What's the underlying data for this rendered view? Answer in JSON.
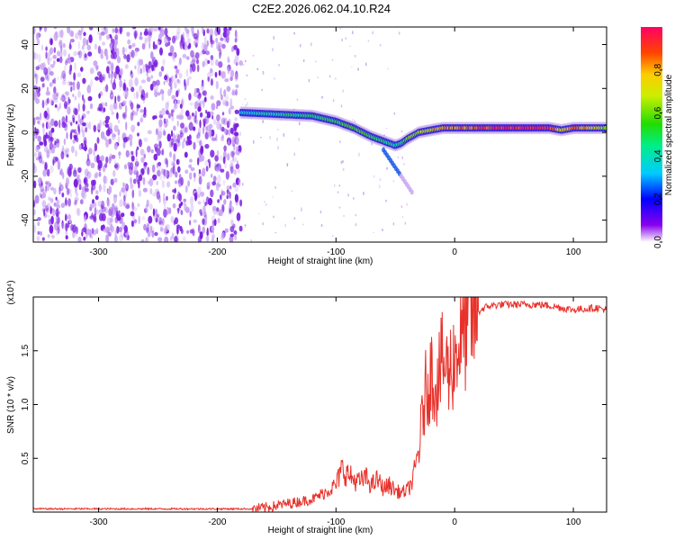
{
  "title": "C2E2.2026.062.04.10.R24",
  "colors": {
    "snr_line": "#e8312a",
    "frame": "#000000",
    "background": "#ffffff"
  },
  "chart_data": [
    {
      "type": "heatmap",
      "name": "spectrogram",
      "xlabel": "Height of straight line (km)",
      "ylabel": "Frequency (Hz)",
      "xlim": [
        -355,
        128
      ],
      "ylim": [
        -50,
        48
      ],
      "xticks": [
        -300,
        -200,
        -100,
        0,
        100
      ],
      "yticks": [
        -40,
        -20,
        0,
        20,
        40
      ],
      "colorbar": {
        "label": "Normalized spectral amplitude",
        "range": [
          0,
          1
        ],
        "ticks": [
          0.0,
          0.2,
          0.4,
          0.6,
          0.8
        ],
        "tick_labels": [
          "0.0",
          "0.2",
          "0.4",
          "0.6",
          "0.8"
        ]
      },
      "noise_region_x": [
        -355,
        -180
      ],
      "signal_track": {
        "x": [
          -180,
          -160,
          -140,
          -120,
          -100,
          -85,
          -70,
          -60,
          -50,
          -45,
          -40,
          -30,
          -20,
          -10,
          0,
          20,
          40,
          60,
          80,
          90,
          100,
          110,
          120,
          128
        ],
        "frequency_hz": [
          9,
          8.5,
          8,
          7.5,
          5,
          2,
          -2,
          -4,
          -6,
          -5,
          -3,
          0,
          1,
          2,
          2,
          2,
          2,
          2,
          2,
          1,
          2,
          2,
          2,
          2
        ],
        "amplitude": [
          0.35,
          0.4,
          0.45,
          0.5,
          0.5,
          0.6,
          0.55,
          0.5,
          0.45,
          0.5,
          0.6,
          0.7,
          0.75,
          0.8,
          0.85,
          0.9,
          0.95,
          1.0,
          1.0,
          0.7,
          0.85,
          0.8,
          0.75,
          0.7
        ]
      },
      "secondary_track": {
        "x": [
          -60,
          -55,
          -50,
          -45,
          -40,
          -35
        ],
        "frequency_hz": [
          -8,
          -12,
          -16,
          -20,
          -24,
          -28
        ]
      }
    },
    {
      "type": "line",
      "name": "snr",
      "xlabel": "Height of straight line (km)",
      "ylabel": "SNR (10 * v/v)",
      "yscale_label": "(x10⁴)",
      "xlim": [
        -355,
        128
      ],
      "ylim": [
        0.0,
        2.0
      ],
      "xticks": [
        -300,
        -200,
        -100,
        0,
        100
      ],
      "yticks": [
        0.5,
        1.0,
        1.5
      ],
      "ytick_labels": [
        "0.5",
        "1.0",
        "1.5"
      ],
      "units": "x10^4",
      "series": [
        {
          "name": "SNR",
          "x": [
            -355,
            -300,
            -250,
            -200,
            -170,
            -160,
            -150,
            -130,
            -120,
            -110,
            -100,
            -95,
            -90,
            -85,
            -80,
            -75,
            -70,
            -65,
            -60,
            -55,
            -50,
            -45,
            -40,
            -35,
            -30,
            -25,
            -20,
            -15,
            -10,
            -5,
            0,
            5,
            10,
            15,
            20,
            25,
            30,
            40,
            50,
            60,
            70,
            80,
            90,
            100,
            110,
            120,
            128
          ],
          "values": [
            0.03,
            0.03,
            0.03,
            0.03,
            0.03,
            0.04,
            0.06,
            0.1,
            0.12,
            0.18,
            0.25,
            0.4,
            0.35,
            0.3,
            0.28,
            0.32,
            0.25,
            0.3,
            0.22,
            0.25,
            0.2,
            0.18,
            0.2,
            0.3,
            0.6,
            1.1,
            1.3,
            1.2,
            1.4,
            1.3,
            1.45,
            1.6,
            1.7,
            1.8,
            1.86,
            1.9,
            1.92,
            1.93,
            1.93,
            1.93,
            1.93,
            1.92,
            1.9,
            1.88,
            1.89,
            1.9,
            1.88
          ]
        }
      ]
    }
  ]
}
